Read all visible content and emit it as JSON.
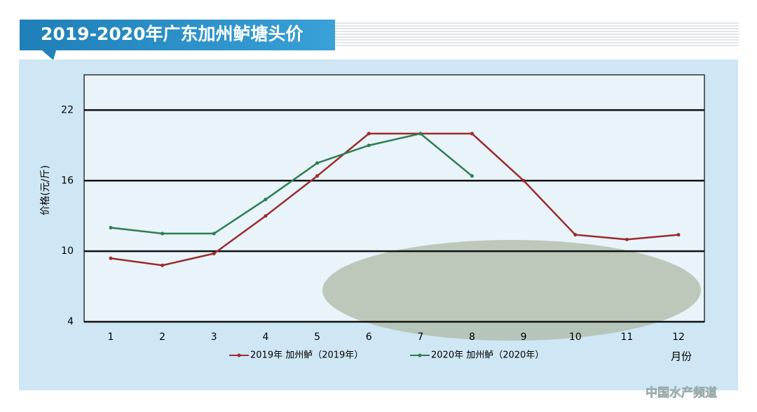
{
  "chart_data": {
    "type": "line",
    "title": "2019-2020年广东加州鲈塘头价",
    "y_label": "价格(元/斤)",
    "x_label": "月份",
    "categories": [
      "1",
      "2",
      "3",
      "4",
      "5",
      "6",
      "7",
      "8",
      "9",
      "10",
      "11",
      "12"
    ],
    "series": [
      {
        "name": "2019年 加州鲈（2019年）",
        "color": "#9b2b2b",
        "values": [
          9.4,
          8.8,
          9.8,
          13.0,
          16.4,
          20.0,
          20.0,
          20.0,
          16.0,
          11.4,
          11.0,
          11.4
        ]
      },
      {
        "name": "2020年 加州鲈（2020年）",
        "color": "#2e7d4f",
        "values": [
          12.0,
          11.5,
          11.5,
          14.4,
          17.5,
          19.0,
          20.0,
          16.4,
          null,
          null,
          null,
          null
        ]
      }
    ],
    "ylim": [
      4,
      25
    ],
    "yticks": [
      4,
      10,
      16,
      22
    ],
    "grid": true,
    "watermark": "中国水产频道"
  }
}
